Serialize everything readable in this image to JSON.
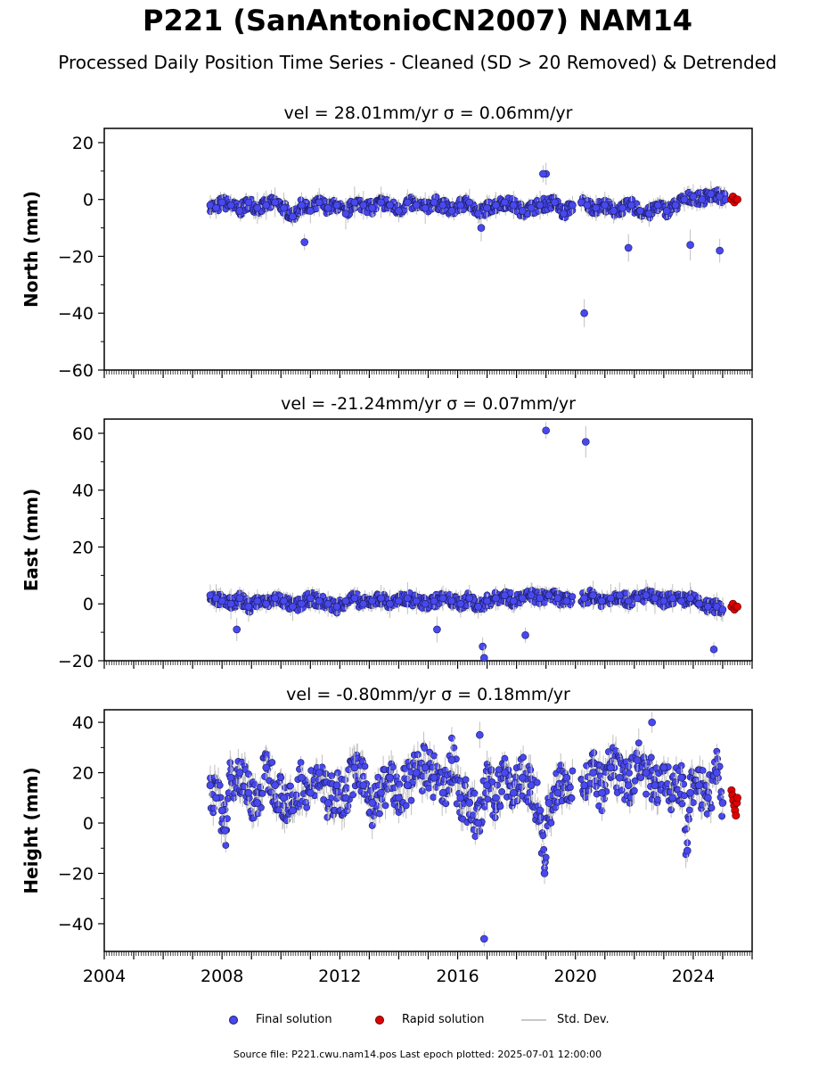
{
  "header": {
    "title": "P221 (SanAntonioCN2007) NAM14",
    "subtitle": "Processed Daily Position Time Series - Cleaned (SD > 20 Removed) & Detrended"
  },
  "colors": {
    "final": "#4848f0",
    "final_edge": "#1a1a5a",
    "rapid": "#e00000",
    "stddev": "#c0c0c0"
  },
  "legend": {
    "final_label": "Final solution",
    "rapid_label": "Rapid solution",
    "stddev_label": "Std. Dev."
  },
  "footer": {
    "text": "Source file: P221.cwu.nam14.pos  Last epoch plotted: 2025-07-01 12:00:00"
  },
  "chart_data": [
    {
      "type": "scatter",
      "title": "vel = 28.01mm/yr   σ = 0.06mm/yr",
      "ylabel": "North (mm)",
      "xlim": [
        2004.0,
        2026.0
      ],
      "ylim": [
        -60,
        25
      ],
      "yticks": [
        20,
        0,
        -20,
        -40,
        -60
      ],
      "ytick_labels": [
        "20",
        "0",
        "−20",
        "−40",
        "−60"
      ],
      "xticks": [
        2004,
        2008,
        2012,
        2016,
        2020,
        2024
      ],
      "xtick_labels": [
        "",
        "",
        "",
        "",
        "",
        ""
      ],
      "series": [
        {
          "name": "Final solution",
          "color": "#4848f0",
          "x": [
            2007.6,
            2007.8,
            2008.0,
            2008.3,
            2008.6,
            2008.9,
            2009.2,
            2009.5,
            2009.8,
            2010.1,
            2010.4,
            2010.7,
            2011.0,
            2011.3,
            2011.6,
            2011.9,
            2012.2,
            2012.5,
            2012.8,
            2013.1,
            2013.4,
            2013.7,
            2014.0,
            2014.3,
            2014.6,
            2014.9,
            2015.2,
            2015.5,
            2015.8,
            2016.1,
            2016.4,
            2016.7,
            2017.0,
            2017.3,
            2017.6,
            2017.9,
            2018.2,
            2018.5,
            2018.8,
            2019.0,
            2019.3,
            2019.6,
            2019.9,
            2020.2,
            2020.4,
            2020.7,
            2021.0,
            2021.3,
            2021.6,
            2021.9,
            2022.2,
            2022.5,
            2022.8,
            2023.1,
            2023.4,
            2023.7,
            2024.0,
            2024.3,
            2024.6,
            2024.9,
            2025.1,
            2010.8,
            2018.9,
            2020.3,
            2024.9,
            2023.9,
            2021.8,
            2016.8
          ],
          "y": [
            -2,
            -3,
            -1,
            -2,
            -4,
            -1,
            -3,
            -2,
            -1,
            -3,
            -6,
            -2,
            -4,
            -1,
            -3,
            -2,
            -5,
            -1,
            -2,
            -3,
            -1,
            -2,
            -4,
            -1,
            -2,
            -3,
            -1,
            -2,
            -4,
            -2,
            -1,
            -5,
            -3,
            -2,
            -1,
            -2,
            -4,
            -3,
            -2,
            9,
            -1,
            -5,
            -2,
            -1,
            -2,
            -3,
            -2,
            -4,
            -3,
            -2,
            -4,
            -5,
            -2,
            -4,
            -2,
            0,
            1,
            0,
            2,
            1,
            0,
            -15,
            9,
            -40,
            -18,
            -16,
            -17,
            -10
          ]
        },
        {
          "name": "Rapid solution",
          "color": "#e00000",
          "x": [
            2025.3,
            2025.35,
            2025.4,
            2025.45,
            2025.5
          ],
          "y": [
            0,
            1,
            -1,
            0,
            0
          ]
        }
      ]
    },
    {
      "type": "scatter",
      "title": "vel = -21.24mm/yr   σ = 0.07mm/yr",
      "ylabel": "East (mm)",
      "xlim": [
        2004.0,
        2026.0
      ],
      "ylim": [
        -20,
        65
      ],
      "yticks": [
        60,
        40,
        20,
        0,
        -20
      ],
      "ytick_labels": [
        "60",
        "40",
        "20",
        "0",
        "−20"
      ],
      "xticks": [
        2004,
        2008,
        2012,
        2016,
        2020,
        2024
      ],
      "xtick_labels": [
        "",
        "",
        "",
        "",
        "",
        ""
      ],
      "series": [
        {
          "name": "Final solution",
          "color": "#4848f0",
          "x": [
            2007.6,
            2007.8,
            2008.0,
            2008.3,
            2008.6,
            2008.9,
            2009.2,
            2009.5,
            2009.8,
            2010.1,
            2010.4,
            2010.7,
            2011.0,
            2011.3,
            2011.6,
            2011.9,
            2012.2,
            2012.5,
            2012.8,
            2013.1,
            2013.4,
            2013.7,
            2014.0,
            2014.3,
            2014.6,
            2014.9,
            2015.2,
            2015.5,
            2015.8,
            2016.1,
            2016.4,
            2016.7,
            2017.0,
            2017.3,
            2017.6,
            2017.9,
            2018.2,
            2018.5,
            2018.8,
            2019.1,
            2019.4,
            2019.7,
            2020.3,
            2020.6,
            2020.9,
            2021.2,
            2021.5,
            2021.8,
            2022.1,
            2022.4,
            2022.7,
            2023.0,
            2023.3,
            2023.6,
            2023.9,
            2024.2,
            2024.5,
            2024.8,
            2025.0,
            2019.0,
            2020.35,
            2016.85,
            2016.9,
            2008.5,
            2024.7,
            2018.3,
            2015.3
          ],
          "y": [
            3,
            2,
            1,
            0,
            2,
            -1,
            1,
            0,
            2,
            1,
            -1,
            0,
            2,
            1,
            0,
            -1,
            1,
            2,
            0,
            1,
            2,
            0,
            1,
            2,
            1,
            0,
            1,
            2,
            1,
            0,
            2,
            -1,
            1,
            2,
            3,
            1,
            2,
            3,
            2,
            3,
            2,
            1,
            2,
            3,
            1,
            2,
            3,
            1,
            2,
            3,
            2,
            1,
            2,
            1,
            2,
            0,
            -1,
            -1,
            -2,
            61,
            57,
            -15,
            -19,
            -9,
            -16,
            -11,
            -9
          ]
        },
        {
          "name": "Rapid solution",
          "color": "#e00000",
          "x": [
            2025.3,
            2025.35,
            2025.4,
            2025.45,
            2025.5
          ],
          "y": [
            -1,
            0,
            -2,
            -1,
            -1
          ]
        }
      ]
    },
    {
      "type": "scatter",
      "title": "vel = -0.80mm/yr   σ = 0.18mm/yr",
      "ylabel": "Height (mm)",
      "xlim": [
        2004.0,
        2026.0
      ],
      "ylim": [
        -51,
        45
      ],
      "yticks": [
        40,
        20,
        0,
        -20,
        -40
      ],
      "ytick_labels": [
        "40",
        "20",
        "0",
        "−20",
        "−40"
      ],
      "xticks": [
        2004,
        2008,
        2012,
        2016,
        2020,
        2024
      ],
      "xtick_labels": [
        "2004",
        "2008",
        "2012",
        "2016",
        "2020",
        "2024"
      ],
      "series": [
        {
          "name": "Final solution",
          "color": "#4848f0",
          "x": [
            2007.6,
            2007.8,
            2008.0,
            2008.3,
            2008.6,
            2008.9,
            2009.2,
            2009.5,
            2009.8,
            2010.1,
            2010.4,
            2010.7,
            2011.0,
            2011.3,
            2011.6,
            2011.9,
            2012.2,
            2012.5,
            2012.8,
            2013.1,
            2013.4,
            2013.7,
            2014.0,
            2014.3,
            2014.6,
            2014.9,
            2015.2,
            2015.5,
            2015.8,
            2016.1,
            2016.4,
            2016.7,
            2017.0,
            2017.3,
            2017.6,
            2017.9,
            2018.2,
            2018.5,
            2018.8,
            2019.1,
            2019.4,
            2019.7,
            2020.3,
            2020.6,
            2020.9,
            2021.2,
            2021.5,
            2021.8,
            2022.1,
            2022.4,
            2022.7,
            2023.0,
            2023.3,
            2023.6,
            2023.9,
            2024.2,
            2024.5,
            2024.8,
            2025.0,
            2016.9,
            2018.95,
            2022.6,
            2016.75,
            2008.1,
            2023.8
          ],
          "y": [
            15,
            10,
            5,
            18,
            20,
            12,
            8,
            22,
            15,
            10,
            5,
            18,
            12,
            20,
            8,
            15,
            10,
            22,
            15,
            8,
            12,
            18,
            10,
            15,
            20,
            22,
            18,
            12,
            25,
            10,
            8,
            0,
            15,
            10,
            20,
            12,
            18,
            15,
            5,
            8,
            12,
            18,
            15,
            20,
            12,
            22,
            18,
            15,
            25,
            20,
            15,
            22,
            10,
            18,
            12,
            15,
            10,
            20,
            8,
            -46,
            -20,
            40,
            35,
            -3,
            -11
          ]
        },
        {
          "name": "Rapid solution",
          "color": "#e00000",
          "x": [
            2025.3,
            2025.33,
            2025.36,
            2025.39,
            2025.42,
            2025.45,
            2025.48,
            2025.5
          ],
          "y": [
            13,
            11,
            9,
            7,
            5,
            3,
            8,
            10
          ]
        }
      ]
    }
  ]
}
